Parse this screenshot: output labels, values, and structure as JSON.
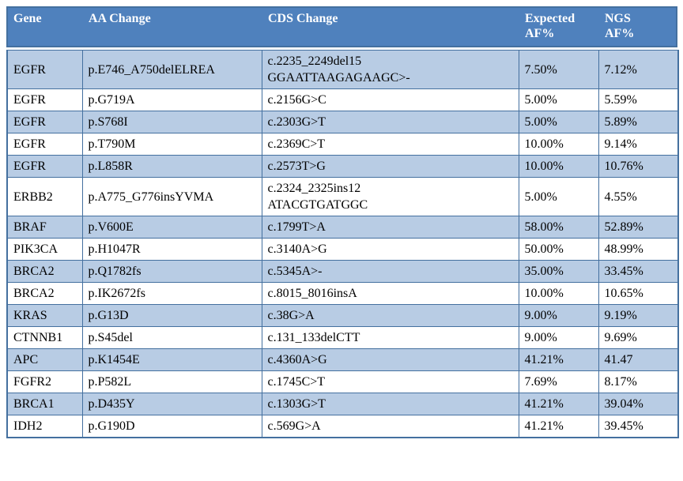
{
  "colors": {
    "header_bg": "#4f81bd",
    "header_text": "#ffffff",
    "row_alt_bg": "#b8cce4",
    "row_bg": "#ffffff",
    "border": "#44709f",
    "body_text": "#000000"
  },
  "table": {
    "columns": [
      "Gene",
      "AA Change",
      "CDS Change",
      "Expected\nAF%",
      "NGS\nAF%"
    ],
    "rows": [
      [
        "EGFR",
        "p.E746_A750delELREA",
        "c.2235_2249del15\nGGAATTAAGAGAAGC>-",
        "7.50%",
        "7.12%"
      ],
      [
        "EGFR",
        "p.G719A",
        "c.2156G>C",
        "5.00%",
        "5.59%"
      ],
      [
        "EGFR",
        "p.S768I",
        "c.2303G>T",
        "5.00%",
        "5.89%"
      ],
      [
        "EGFR",
        "p.T790M",
        "c.2369C>T",
        "10.00%",
        "9.14%"
      ],
      [
        "EGFR",
        "p.L858R",
        "c.2573T>G",
        "10.00%",
        "10.76%"
      ],
      [
        "ERBB2",
        "p.A775_G776insYVMA",
        "c.2324_2325ins12\nATACGTGATGGC",
        "5.00%",
        "4.55%"
      ],
      [
        "BRAF",
        "p.V600E",
        "c.1799T>A",
        "58.00%",
        "52.89%"
      ],
      [
        "PIK3CA",
        "p.H1047R",
        "c.3140A>G",
        "50.00%",
        "48.99%"
      ],
      [
        "BRCA2",
        "p.Q1782fs",
        "c.5345A>-",
        "35.00%",
        "33.45%"
      ],
      [
        "BRCA2",
        "p.IK2672fs",
        "c.8015_8016insA",
        "10.00%",
        "10.65%"
      ],
      [
        "KRAS",
        "p.G13D",
        "c.38G>A",
        "9.00%",
        "9.19%"
      ],
      [
        "CTNNB1",
        "p.S45del",
        "c.131_133delCTT",
        "9.00%",
        "9.69%"
      ],
      [
        "APC",
        "p.K1454E",
        "c.4360A>G",
        "41.21%",
        "41.47"
      ],
      [
        "FGFR2",
        "p.P582L",
        "c.1745C>T",
        "7.69%",
        "8.17%"
      ],
      [
        "BRCA1",
        "p.D435Y",
        "c.1303G>T",
        "41.21%",
        "39.04%"
      ],
      [
        "IDH2",
        "p.G190D",
        "c.569G>A",
        "41.21%",
        "39.45%"
      ]
    ]
  }
}
